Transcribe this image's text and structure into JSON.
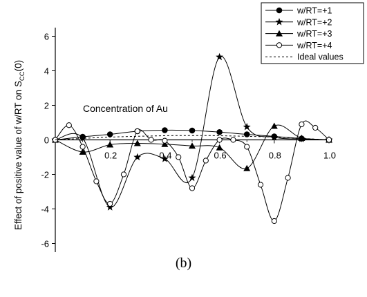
{
  "chart_data": {
    "type": "line",
    "xlabel": "",
    "ylabel_main": "Effect of positive value of w/RT on S",
    "ylabel_sub": "CC",
    "ylabel_tail": "(0)",
    "annotation": "Concentration of Au",
    "xlim": [
      0.0,
      1.0
    ],
    "ylim": [
      -6.5,
      6.5
    ],
    "xticks": [
      0.2,
      0.4,
      0.6,
      0.8,
      1.0
    ],
    "xtick_labels": [
      "0.2",
      "0.4",
      "0.6",
      "0.8",
      "1.0"
    ],
    "yticks": [
      -6,
      -4,
      -2,
      0,
      2,
      4,
      6
    ],
    "ytick_labels": [
      "-6",
      "-4",
      "-2",
      "0",
      "2",
      "4",
      "6"
    ],
    "legend_position": "top-right",
    "series": [
      {
        "name": "w/RT=+1",
        "marker": "circle",
        "x": [
          0.0,
          0.1,
          0.2,
          0.3,
          0.4,
          0.5,
          0.6,
          0.7,
          0.8,
          0.9,
          1.0
        ],
        "y": [
          0.0,
          0.18,
          0.32,
          0.5,
          0.56,
          0.54,
          0.45,
          0.32,
          0.2,
          0.08,
          0.0
        ]
      },
      {
        "name": "w/RT=+2",
        "marker": "star",
        "x": [
          0.0,
          0.1,
          0.2,
          0.3,
          0.4,
          0.5,
          0.6,
          0.7,
          0.8,
          0.9,
          1.0
        ],
        "y": [
          0.0,
          0.1,
          -3.9,
          -1.0,
          -1.1,
          -2.2,
          4.8,
          0.75,
          0.15,
          0.05,
          0.0
        ]
      },
      {
        "name": "w/RT=+3",
        "marker": "triangle",
        "x": [
          0.0,
          0.1,
          0.2,
          0.3,
          0.4,
          0.5,
          0.6,
          0.7,
          0.8,
          0.9,
          1.0
        ],
        "y": [
          0.0,
          -0.7,
          -0.28,
          -0.2,
          -0.25,
          -0.35,
          -0.45,
          -1.65,
          0.8,
          0.1,
          0.0
        ]
      },
      {
        "name": "w/RT=+4",
        "marker": "open-circle",
        "x": [
          0.0,
          0.05,
          0.1,
          0.15,
          0.2,
          0.25,
          0.3,
          0.35,
          0.4,
          0.45,
          0.5,
          0.55,
          0.6,
          0.65,
          0.7,
          0.75,
          0.8,
          0.85,
          0.9,
          0.95,
          1.0
        ],
        "y": [
          0.0,
          0.85,
          -0.4,
          -2.4,
          -3.7,
          -2.0,
          0.5,
          0.0,
          -0.05,
          -1.0,
          -2.8,
          -1.2,
          0.0,
          0.0,
          -0.4,
          -2.6,
          -4.7,
          -2.2,
          0.9,
          0.7,
          0.0
        ]
      },
      {
        "name": "Ideal values",
        "marker": "none",
        "dashed": true,
        "x": [
          0.0,
          0.2,
          0.4,
          0.5,
          0.6,
          0.8,
          1.0
        ],
        "y": [
          0.0,
          0.16,
          0.24,
          0.25,
          0.24,
          0.16,
          0.0
        ]
      }
    ]
  },
  "caption": "(b)"
}
